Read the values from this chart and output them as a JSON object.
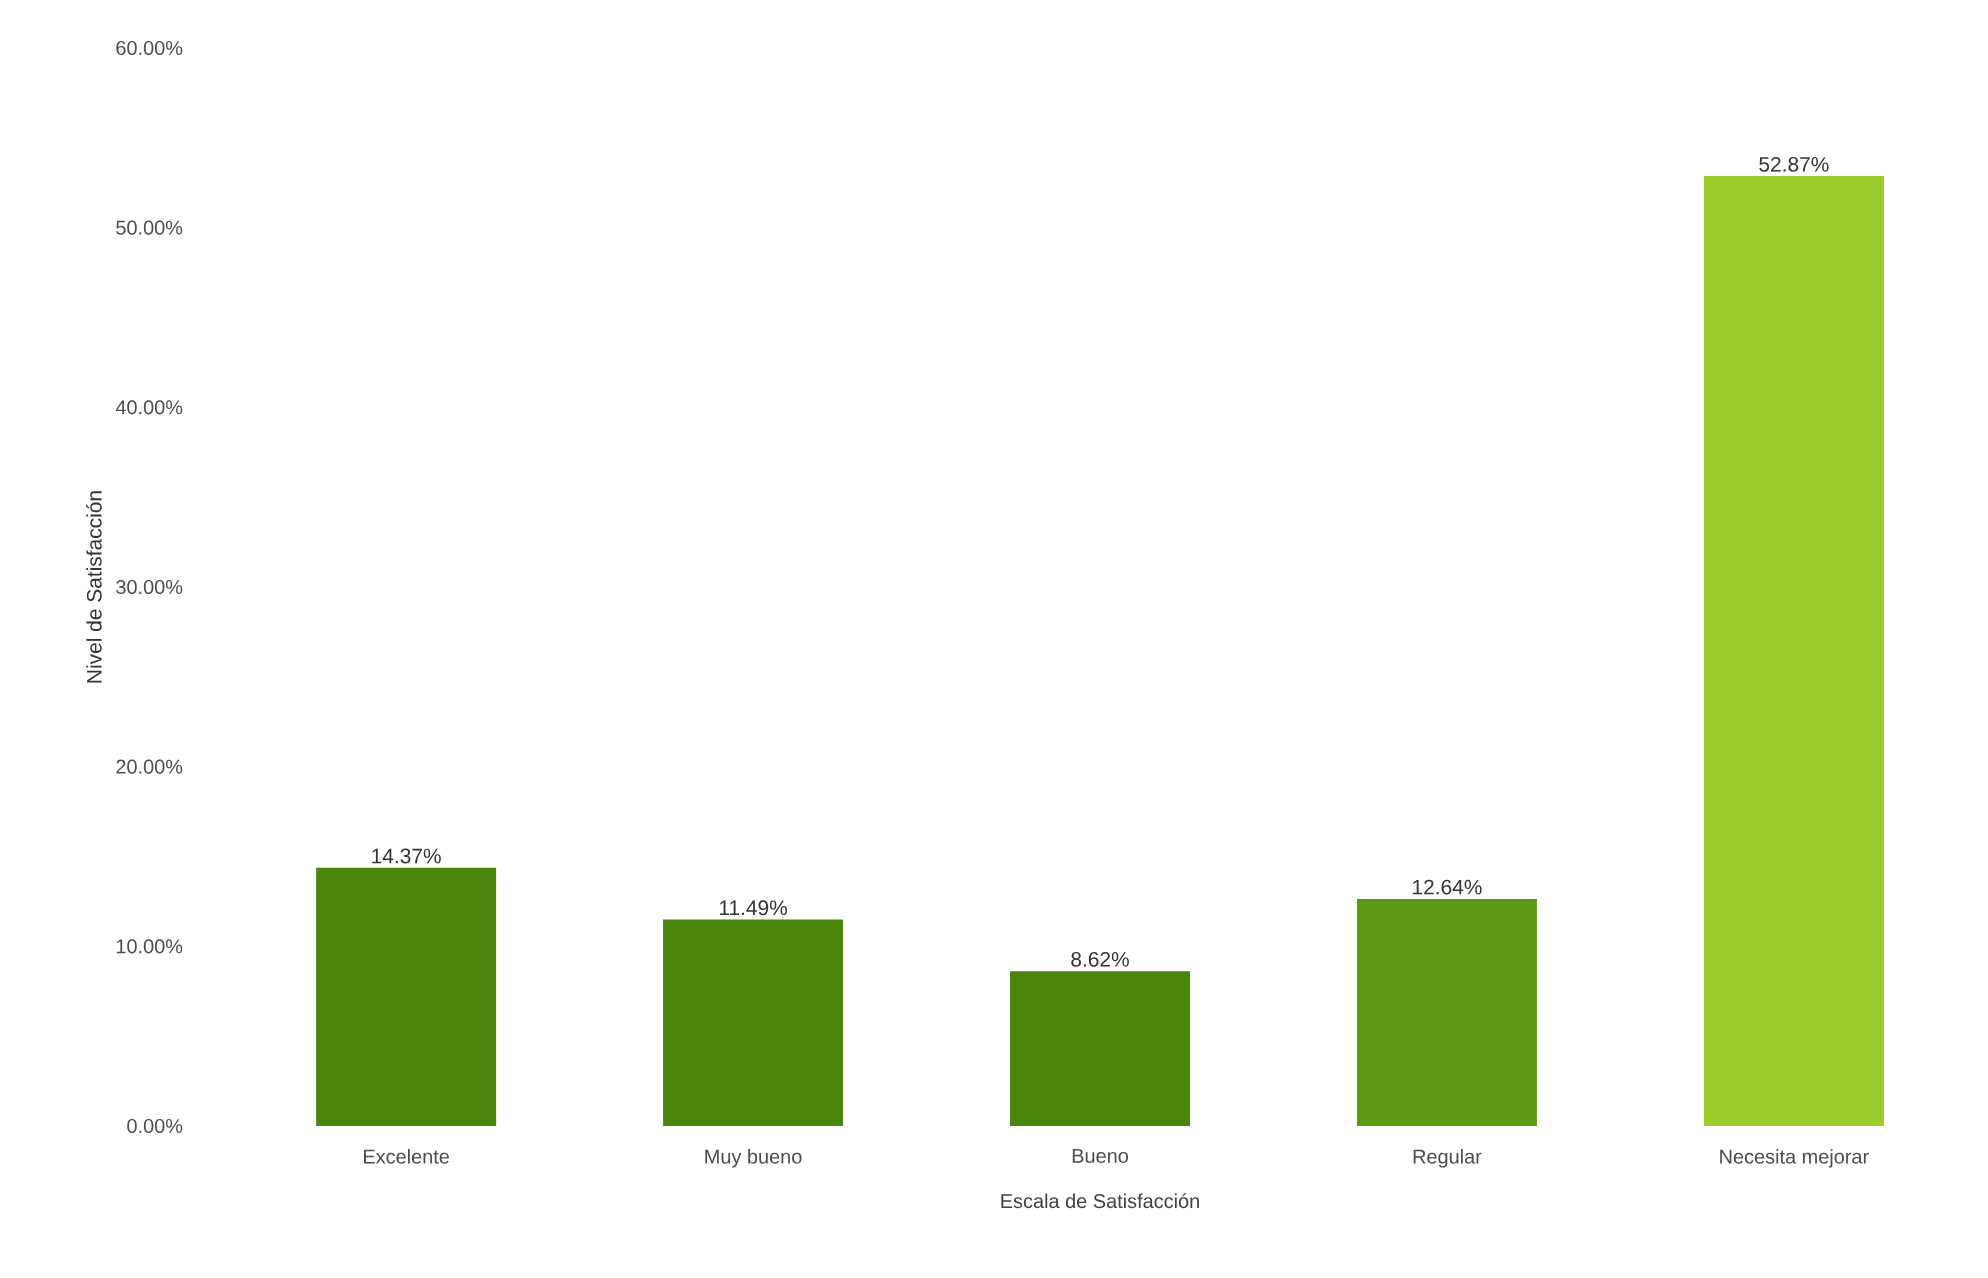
{
  "chart_data": {
    "type": "bar",
    "xlabel": "Escala de Satisfacción",
    "ylabel": "Nivel de Satisfacción",
    "categories": [
      "Excelente",
      "Muy bueno",
      "Bueno",
      "Regular",
      "Necesita mejorar"
    ],
    "values": [
      14.37,
      11.49,
      8.62,
      12.64,
      52.87
    ],
    "value_labels": [
      "14.37%",
      "11.49%",
      "8.62%",
      "12.64%",
      "52.87%"
    ],
    "colors": [
      "#4a850c",
      "#4a850c",
      "#4a850c",
      "#5c9a12",
      "#9acb2a"
    ],
    "ylim": [
      0,
      60
    ],
    "yticks": [
      {
        "value": 0,
        "label": "0.00%"
      },
      {
        "value": 10,
        "label": "10.00%"
      },
      {
        "value": 20,
        "label": "20.00%"
      },
      {
        "value": 30,
        "label": "30.00%"
      },
      {
        "value": 40,
        "label": "40.00%"
      },
      {
        "value": 50,
        "label": "50.00%"
      },
      {
        "value": 60,
        "label": "60.00%"
      }
    ]
  }
}
